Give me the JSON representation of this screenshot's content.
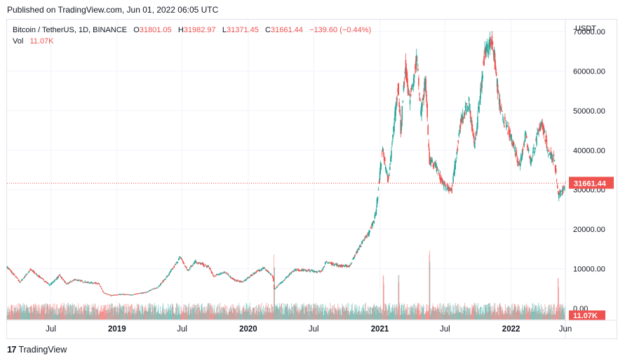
{
  "header": {
    "published": "Published on TradingView.com, Jun 01, 2022 06:05 UTC"
  },
  "legend": {
    "symbol": "Bitcoin / TetherUS, 1D, BINANCE",
    "o_label": "O",
    "o_value": "31801.05",
    "h_label": "H",
    "h_value": "31982.97",
    "l_label": "L",
    "l_value": "31371.45",
    "c_label": "C",
    "c_value": "31661.44",
    "change": "−139.60 (−0.44%)",
    "vol_label": "Vol",
    "vol_value": "11.07K"
  },
  "footer": {
    "brand": "TradingView",
    "logo": "17"
  },
  "colors": {
    "up": "#26a69a",
    "down": "#ef5350",
    "grid": "#f0f3fa",
    "axis_text": "#131722"
  },
  "chart_data": {
    "type": "candlestick",
    "title": "Bitcoin / TetherUS, 1D, BINANCE",
    "currency_label": "USDT",
    "y_range": [
      -3000,
      73000
    ],
    "y_ticks": [
      {
        "value": 70000,
        "label": "70000.00"
      },
      {
        "value": 60000,
        "label": "60000.00"
      },
      {
        "value": 50000,
        "label": "50000.00"
      },
      {
        "value": 40000,
        "label": "40000.00"
      },
      {
        "value": 30000,
        "label": "30000.00"
      },
      {
        "value": 20000,
        "label": "20000.00"
      },
      {
        "value": 10000,
        "label": "10000.00"
      },
      {
        "value": 0,
        "label": "0.00"
      }
    ],
    "x_range": [
      "2018-03-01",
      "2022-06-01"
    ],
    "x_ticks": [
      {
        "date": "2018-07-01",
        "label": "Jul",
        "bold": false
      },
      {
        "date": "2019-01-01",
        "label": "2019",
        "bold": true
      },
      {
        "date": "2019-07-01",
        "label": "Jul",
        "bold": false
      },
      {
        "date": "2020-01-01",
        "label": "2020",
        "bold": true
      },
      {
        "date": "2020-07-01",
        "label": "Jul",
        "bold": false
      },
      {
        "date": "2021-01-01",
        "label": "2021",
        "bold": true
      },
      {
        "date": "2021-07-01",
        "label": "Jul",
        "bold": false
      },
      {
        "date": "2022-01-01",
        "label": "2022",
        "bold": true
      },
      {
        "date": "2022-06-01",
        "label": "Jun",
        "bold": false
      }
    ],
    "price_path": [
      [
        "2018-03-01",
        10500
      ],
      [
        "2018-03-20",
        8500
      ],
      [
        "2018-04-06",
        6600
      ],
      [
        "2018-05-05",
        9800
      ],
      [
        "2018-06-28",
        5900
      ],
      [
        "2018-07-25",
        8300
      ],
      [
        "2018-08-14",
        6100
      ],
      [
        "2018-09-05",
        7300
      ],
      [
        "2018-10-15",
        6500
      ],
      [
        "2018-11-10",
        6400
      ],
      [
        "2018-11-25",
        3900
      ],
      [
        "2018-12-15",
        3250
      ],
      [
        "2019-01-15",
        3600
      ],
      [
        "2019-02-08",
        3400
      ],
      [
        "2019-03-20",
        4000
      ],
      [
        "2019-04-25",
        5400
      ],
      [
        "2019-05-25",
        8600
      ],
      [
        "2019-06-26",
        13000
      ],
      [
        "2019-07-16",
        9500
      ],
      [
        "2019-08-06",
        11900
      ],
      [
        "2019-09-15",
        10300
      ],
      [
        "2019-09-26",
        8100
      ],
      [
        "2019-10-26",
        9200
      ],
      [
        "2019-11-25",
        7100
      ],
      [
        "2019-12-18",
        6700
      ],
      [
        "2020-01-15",
        8800
      ],
      [
        "2020-02-13",
        10300
      ],
      [
        "2020-03-10",
        7900
      ],
      [
        "2020-03-13",
        4800
      ],
      [
        "2020-04-01",
        6500
      ],
      [
        "2020-05-08",
        9800
      ],
      [
        "2020-06-10",
        9600
      ],
      [
        "2020-07-20",
        9200
      ],
      [
        "2020-08-05",
        11700
      ],
      [
        "2020-09-15",
        10700
      ],
      [
        "2020-10-08",
        10700
      ],
      [
        "2020-11-05",
        15500
      ],
      [
        "2020-12-01",
        19000
      ],
      [
        "2020-12-20",
        23500
      ],
      [
        "2021-01-08",
        40000
      ],
      [
        "2021-01-25",
        32000
      ],
      [
        "2021-02-21",
        57000
      ],
      [
        "2021-02-28",
        45000
      ],
      [
        "2021-03-13",
        61000
      ],
      [
        "2021-03-25",
        52000
      ],
      [
        "2021-04-14",
        63500
      ],
      [
        "2021-04-25",
        49000
      ],
      [
        "2021-05-08",
        58000
      ],
      [
        "2021-05-19",
        37000
      ],
      [
        "2021-06-05",
        36000
      ],
      [
        "2021-06-22",
        32000
      ],
      [
        "2021-07-20",
        29800
      ],
      [
        "2021-08-14",
        47000
      ],
      [
        "2021-09-06",
        52000
      ],
      [
        "2021-09-22",
        41000
      ],
      [
        "2021-10-20",
        65000
      ],
      [
        "2021-11-10",
        68000
      ],
      [
        "2021-11-26",
        54000
      ],
      [
        "2021-12-05",
        49000
      ],
      [
        "2022-01-10",
        41000
      ],
      [
        "2022-01-24",
        36000
      ],
      [
        "2022-02-10",
        44000
      ],
      [
        "2022-02-24",
        37000
      ],
      [
        "2022-03-28",
        47500
      ],
      [
        "2022-04-12",
        40000
      ],
      [
        "2022-05-01",
        38000
      ],
      [
        "2022-05-12",
        28500
      ],
      [
        "2022-05-25",
        29500
      ],
      [
        "2022-06-01",
        31661
      ]
    ],
    "last_price": {
      "value": 31661.44,
      "label": "31661.44"
    },
    "volume_label": "11.07K",
    "volume_notes": "Volume histogram at the bottom; spikes near Mar 2020, Jan 2021, May 2021, May 2022"
  }
}
